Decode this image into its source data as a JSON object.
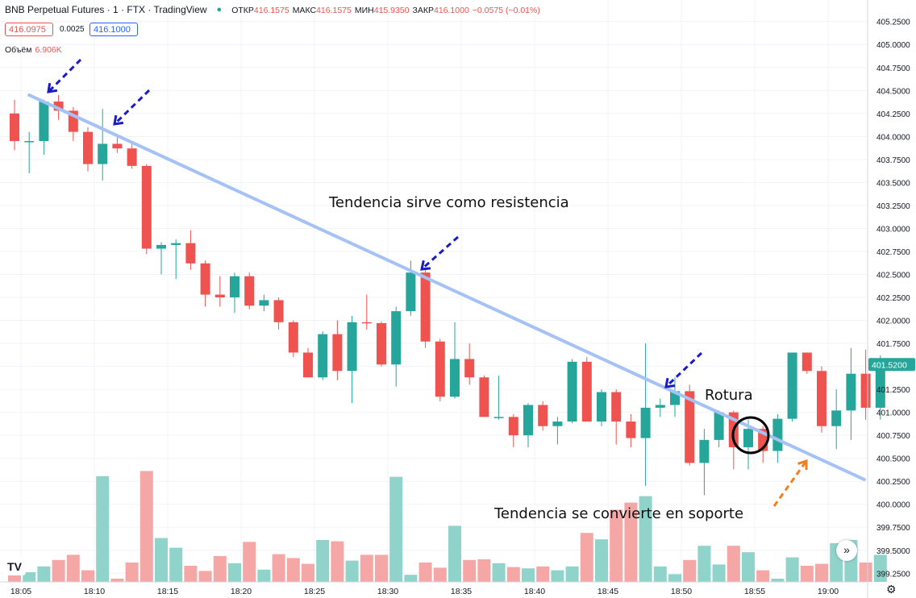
{
  "header": {
    "symbol": "BNB Perpetual Futures · 1 · FTX · TradingView",
    "ohlc": [
      {
        "k": "ОТКР",
        "v": "416.1575"
      },
      {
        "k": "МАКС",
        "v": "416.1575"
      },
      {
        "k": "МИН",
        "v": "415.9350"
      },
      {
        "k": "ЗАКР",
        "v": "416.1000"
      },
      {
        "k": "",
        "v": "−0.0575 (−0.01%)"
      }
    ],
    "bid": "416.0975",
    "spread": "0.0025",
    "ask": "416.1000",
    "volume_label": "Объём",
    "volume_value": "6.906K"
  },
  "annotations": {
    "resistance": "Tendencia sirve como resistencia",
    "breakout": "Rotura",
    "support": "Tendencia se convierte en soporte"
  },
  "colors": {
    "up": "#26a69a",
    "down": "#ef5350",
    "vol_up": "#8fd3cb",
    "vol_down": "#f5a7a5",
    "trendline": "#a4c2f4",
    "arrow_blue": "#1a1acc",
    "arrow_orange": "#f07f1e",
    "last_price_bg": "#26a69a"
  },
  "chart_data": {
    "type": "candlestick",
    "interval": "1 minute",
    "y_ticks": [
      "405.2500",
      "405.0000",
      "404.7500",
      "404.5000",
      "404.2500",
      "404.0000",
      "403.7500",
      "403.5000",
      "403.2500",
      "403.0000",
      "402.7500",
      "402.5000",
      "402.2500",
      "402.0000",
      "401.7500",
      "401.5000",
      "401.2500",
      "401.0000",
      "400.7500",
      "400.5000",
      "400.2500",
      "400.0000",
      "399.7500",
      "399.5000",
      "399.2500"
    ],
    "ylim": [
      399.2,
      405.3
    ],
    "x_tick_labels": [
      "18:05",
      "18:10",
      "18:15",
      "18:20",
      "18:25",
      "18:30",
      "18:35",
      "18:40",
      "18:45",
      "18:50",
      "18:55",
      "19:00"
    ],
    "last_price": "401.5200",
    "candles": [
      {
        "o": 404.25,
        "h": 404.4,
        "l": 403.85,
        "c": 403.95,
        "v": 0.2
      },
      {
        "o": 403.95,
        "h": 404.05,
        "l": 403.6,
        "c": 403.95,
        "v": 0.15
      },
      {
        "o": 403.95,
        "h": 404.4,
        "l": 403.8,
        "c": 404.38,
        "v": 0.24
      },
      {
        "o": 404.38,
        "h": 404.45,
        "l": 404.18,
        "c": 404.28,
        "v": 0.34
      },
      {
        "o": 404.28,
        "h": 404.32,
        "l": 403.95,
        "c": 404.05,
        "v": 0.42
      },
      {
        "o": 404.05,
        "h": 404.1,
        "l": 403.62,
        "c": 403.7,
        "v": 0.18
      },
      {
        "o": 403.7,
        "h": 404.3,
        "l": 403.52,
        "c": 403.92,
        "v": 1.64
      },
      {
        "o": 403.92,
        "h": 404.02,
        "l": 403.82,
        "c": 403.87,
        "v": 0.05
      },
      {
        "o": 403.87,
        "h": 403.92,
        "l": 403.65,
        "c": 403.68,
        "v": 0.3
      },
      {
        "o": 403.68,
        "h": 403.7,
        "l": 402.72,
        "c": 402.78,
        "v": 1.72
      },
      {
        "o": 402.78,
        "h": 402.85,
        "l": 402.5,
        "c": 402.82,
        "v": 0.68
      },
      {
        "o": 402.82,
        "h": 402.88,
        "l": 402.45,
        "c": 402.84,
        "v": 0.53
      },
      {
        "o": 402.84,
        "h": 402.98,
        "l": 402.55,
        "c": 402.62,
        "v": 0.25
      },
      {
        "o": 402.62,
        "h": 402.65,
        "l": 402.15,
        "c": 402.28,
        "v": 0.17
      },
      {
        "o": 402.28,
        "h": 402.48,
        "l": 402.15,
        "c": 402.25,
        "v": 0.4
      },
      {
        "o": 402.25,
        "h": 402.52,
        "l": 402.08,
        "c": 402.48,
        "v": 0.29
      },
      {
        "o": 402.48,
        "h": 402.52,
        "l": 402.12,
        "c": 402.16,
        "v": 0.62
      },
      {
        "o": 402.16,
        "h": 402.28,
        "l": 402.1,
        "c": 402.22,
        "v": 0.19
      },
      {
        "o": 402.22,
        "h": 402.25,
        "l": 401.9,
        "c": 401.98,
        "v": 0.43
      },
      {
        "o": 401.98,
        "h": 402.0,
        "l": 401.6,
        "c": 401.65,
        "v": 0.37
      },
      {
        "o": 401.65,
        "h": 401.7,
        "l": 401.38,
        "c": 401.38,
        "v": 0.28
      },
      {
        "o": 401.38,
        "h": 401.88,
        "l": 401.35,
        "c": 401.85,
        "v": 0.65
      },
      {
        "o": 401.85,
        "h": 402.0,
        "l": 401.35,
        "c": 401.45,
        "v": 0.63
      },
      {
        "o": 401.45,
        "h": 402.05,
        "l": 401.1,
        "c": 401.98,
        "v": 0.33
      },
      {
        "o": 401.98,
        "h": 402.28,
        "l": 401.9,
        "c": 401.97,
        "v": 0.42
      },
      {
        "o": 401.97,
        "h": 401.99,
        "l": 401.5,
        "c": 401.52,
        "v": 0.42
      },
      {
        "o": 401.52,
        "h": 402.15,
        "l": 401.28,
        "c": 402.1,
        "v": 1.63
      },
      {
        "o": 402.1,
        "h": 402.65,
        "l": 402.05,
        "c": 402.52,
        "v": 0.11
      },
      {
        "o": 402.52,
        "h": 402.55,
        "l": 401.7,
        "c": 401.77,
        "v": 0.3
      },
      {
        "o": 401.77,
        "h": 401.8,
        "l": 401.12,
        "c": 401.17,
        "v": 0.22
      },
      {
        "o": 401.17,
        "h": 401.98,
        "l": 401.15,
        "c": 401.58,
        "v": 0.87
      },
      {
        "o": 401.58,
        "h": 401.75,
        "l": 401.3,
        "c": 401.38,
        "v": 0.34
      },
      {
        "o": 401.38,
        "h": 401.4,
        "l": 400.95,
        "c": 400.95,
        "v": 0.35
      },
      {
        "o": 400.95,
        "h": 401.4,
        "l": 400.92,
        "c": 400.95,
        "v": 0.29
      },
      {
        "o": 400.95,
        "h": 400.98,
        "l": 400.62,
        "c": 400.75,
        "v": 0.23
      },
      {
        "o": 400.75,
        "h": 401.1,
        "l": 400.62,
        "c": 401.08,
        "v": 0.21
      },
      {
        "o": 401.08,
        "h": 401.12,
        "l": 400.8,
        "c": 400.85,
        "v": 0.24
      },
      {
        "o": 400.85,
        "h": 400.95,
        "l": 400.65,
        "c": 400.9,
        "v": 0.18
      },
      {
        "o": 400.9,
        "h": 401.58,
        "l": 400.88,
        "c": 401.55,
        "v": 0.24
      },
      {
        "o": 401.55,
        "h": 401.6,
        "l": 400.9,
        "c": 400.9,
        "v": 0.76
      },
      {
        "o": 400.9,
        "h": 401.25,
        "l": 400.85,
        "c": 401.22,
        "v": 0.66
      },
      {
        "o": 401.22,
        "h": 401.25,
        "l": 400.65,
        "c": 400.9,
        "v": 1.12
      },
      {
        "o": 400.9,
        "h": 400.98,
        "l": 400.62,
        "c": 400.72,
        "v": 1.23
      },
      {
        "o": 400.72,
        "h": 401.75,
        "l": 400.2,
        "c": 401.05,
        "v": 1.33
      },
      {
        "o": 401.05,
        "h": 401.15,
        "l": 400.95,
        "c": 401.08,
        "v": 0.24
      },
      {
        "o": 401.08,
        "h": 401.38,
        "l": 400.95,
        "c": 401.23,
        "v": 0.12
      },
      {
        "o": 401.23,
        "h": 401.3,
        "l": 400.42,
        "c": 400.45,
        "v": 0.34
      },
      {
        "o": 400.45,
        "h": 400.82,
        "l": 400.1,
        "c": 400.7,
        "v": 0.56
      },
      {
        "o": 400.7,
        "h": 401.02,
        "l": 400.62,
        "c": 401.0,
        "v": 0.27
      },
      {
        "o": 401.0,
        "h": 401.02,
        "l": 400.38,
        "c": 400.62,
        "v": 0.56
      },
      {
        "o": 400.62,
        "h": 400.92,
        "l": 400.38,
        "c": 400.82,
        "v": 0.46
      },
      {
        "o": 400.82,
        "h": 400.85,
        "l": 400.45,
        "c": 400.58,
        "v": 0.18
      },
      {
        "o": 400.58,
        "h": 400.98,
        "l": 400.45,
        "c": 400.93,
        "v": 0.05
      },
      {
        "o": 400.93,
        "h": 401.65,
        "l": 400.9,
        "c": 401.65,
        "v": 0.38
      },
      {
        "o": 401.65,
        "h": 401.65,
        "l": 401.42,
        "c": 401.45,
        "v": 0.25
      },
      {
        "o": 401.45,
        "h": 401.5,
        "l": 400.78,
        "c": 400.85,
        "v": 0.28
      },
      {
        "o": 400.85,
        "h": 401.25,
        "l": 400.6,
        "c": 401.02,
        "v": 0.6
      },
      {
        "o": 401.02,
        "h": 401.7,
        "l": 400.7,
        "c": 401.42,
        "v": 0.65
      },
      {
        "o": 401.42,
        "h": 401.68,
        "l": 400.92,
        "c": 401.05,
        "v": 0.3
      },
      {
        "o": 401.05,
        "h": 401.62,
        "l": 400.92,
        "c": 401.48,
        "v": 0.42
      }
    ]
  }
}
